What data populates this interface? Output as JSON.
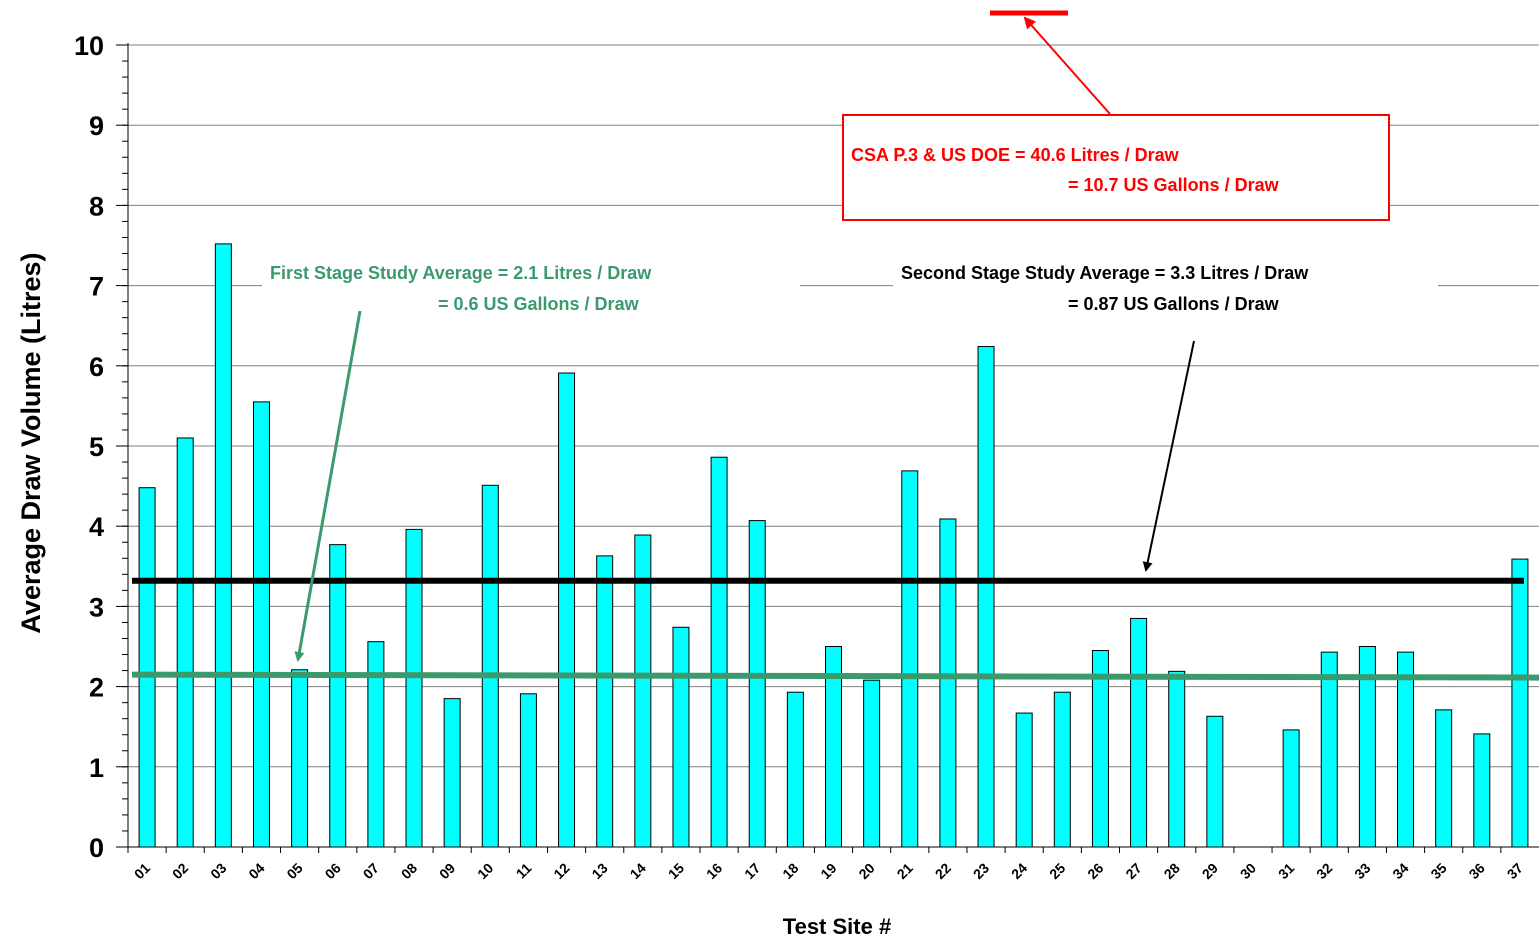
{
  "chart_data": {
    "type": "bar",
    "title": "",
    "xlabel": "Test Site #",
    "ylabel": "Average Draw Volume (Litres)",
    "ylim": [
      0,
      10
    ],
    "yticks": [
      0,
      1,
      2,
      3,
      4,
      5,
      6,
      7,
      8,
      9,
      10
    ],
    "grid": true,
    "categories": [
      "01",
      "02",
      "03",
      "04",
      "05",
      "06",
      "07",
      "08",
      "09",
      "10",
      "11",
      "12",
      "13",
      "14",
      "15",
      "16",
      "17",
      "18",
      "19",
      "20",
      "21",
      "22",
      "23",
      "24",
      "25",
      "26",
      "27",
      "28",
      "29",
      "30",
      "31",
      "32",
      "33",
      "34",
      "35",
      "36",
      "37"
    ],
    "values": [
      4.48,
      5.1,
      7.52,
      5.55,
      2.21,
      3.77,
      2.56,
      3.96,
      1.85,
      4.51,
      1.91,
      5.91,
      3.63,
      3.89,
      2.74,
      4.86,
      4.07,
      1.93,
      2.5,
      2.08,
      4.69,
      4.09,
      6.24,
      1.67,
      1.93,
      2.45,
      2.85,
      2.19,
      1.63,
      0,
      1.46,
      2.43,
      2.5,
      2.43,
      1.71,
      1.41,
      3.59
    ],
    "bar_color": "#00FFFF",
    "reference_lines": [
      {
        "value": 2.15,
        "color": "#3A9A6E"
      },
      {
        "value": 3.32,
        "color": "#000000"
      },
      {
        "value": 40.6,
        "color": "#FF0000"
      }
    ],
    "annotations": {
      "first_stage": {
        "line1": "First Stage Study Average = 2.1 Litres / Draw",
        "line2": "= 0.6 US Gallons / Draw",
        "color": "#3A9A6E"
      },
      "second_stage": {
        "line1": "Second Stage Study Average = 3.3 Litres / Draw",
        "line2": "= 0.87 US Gallons / Draw",
        "color": "#000000"
      },
      "csa": {
        "line1": "CSA P.3 & US DOE = 40.6 Litres / Draw",
        "line2": "= 10.7 US Gallons / Draw",
        "color": "#FF0000"
      }
    }
  }
}
